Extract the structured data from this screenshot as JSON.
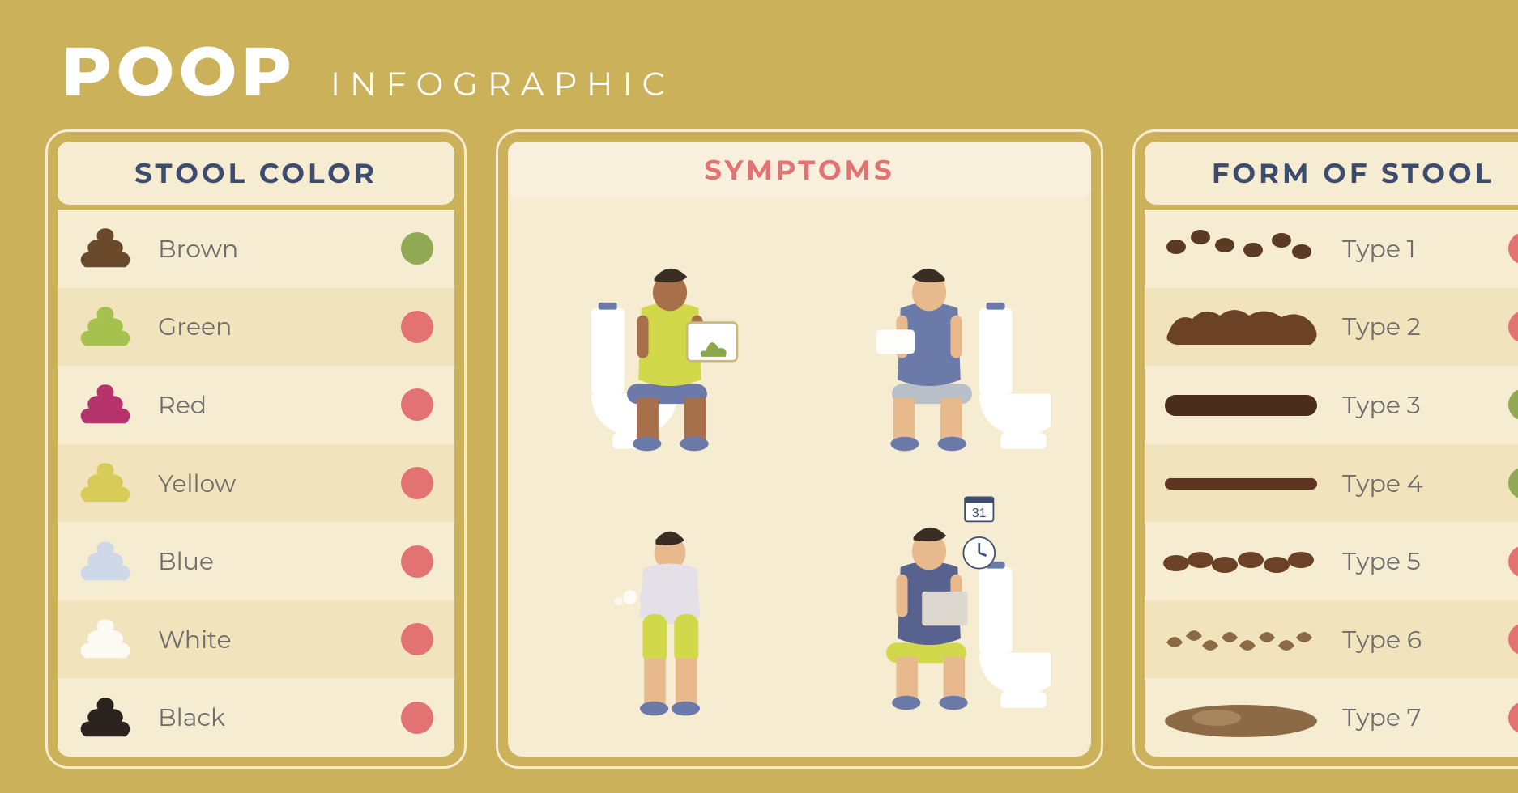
{
  "title": {
    "main": "POOP",
    "sub": "INFOGRAPHIC"
  },
  "colors": {
    "background": "#cbb159",
    "panelBorder": "#f5ecd2",
    "rowA": "#f5ecd2",
    "rowB": "#f1e3bb",
    "headerDark": "#3c4c6e",
    "headerAccent": "#e37373",
    "textGrey": "#6d6d6d",
    "statusGood": "#90a955",
    "statusBad": "#e37373"
  },
  "panels": {
    "stoolColor": {
      "title": "STOOL COLOR",
      "items": [
        {
          "label": "Brown",
          "iconColor": "#6b4a2b",
          "status": "good"
        },
        {
          "label": "Green",
          "iconColor": "#a4c24d",
          "status": "bad"
        },
        {
          "label": "Red",
          "iconColor": "#b5336a",
          "status": "bad"
        },
        {
          "label": "Yellow",
          "iconColor": "#d7cc57",
          "status": "bad"
        },
        {
          "label": "Blue",
          "iconColor": "#cdd9e8",
          "status": "bad"
        },
        {
          "label": "White",
          "iconColor": "#fcfaf3",
          "status": "bad"
        },
        {
          "label": "Black",
          "iconColor": "#2a2320",
          "status": "bad"
        }
      ]
    },
    "symptoms": {
      "title": "SYMPTOMS",
      "scenes": [
        {
          "id": "comparing-chart",
          "shirt": "#d1d94a",
          "pants": "#6b7aa8",
          "skin": "#a86f4b"
        },
        {
          "id": "stomach-pain",
          "shirt": "#6b7aa8",
          "pants": "#b9bfc9",
          "skin": "#e9b98e"
        },
        {
          "id": "bloating",
          "shirt": "#e4e0e8",
          "pants": "#d1d94a",
          "skin": "#e9b98e"
        },
        {
          "id": "constipation",
          "shirt": "#57628e",
          "pants": "#d1d94a",
          "skin": "#e9b98e",
          "calendar": "31"
        }
      ]
    },
    "formOfStool": {
      "title": "FORM OF STOOL",
      "items": [
        {
          "label": "Type 1",
          "shape": "nuggets",
          "color": "#5b3a23",
          "status": "bad"
        },
        {
          "label": "Type 2",
          "shape": "lumpy",
          "color": "#6b4226",
          "status": "bad"
        },
        {
          "label": "Type 3",
          "shape": "sausage",
          "color": "#4b2d1d",
          "status": "good"
        },
        {
          "label": "Type 4",
          "shape": "smooth",
          "color": "#5d3322",
          "status": "good"
        },
        {
          "label": "Type 5",
          "shape": "blobs",
          "color": "#6b4226",
          "status": "bad"
        },
        {
          "label": "Type 6",
          "shape": "mushy",
          "color": "#8d6a46",
          "status": "bad"
        },
        {
          "label": "Type 7",
          "shape": "liquid",
          "color": "#8d6a46",
          "status": "bad"
        }
      ]
    }
  },
  "typography": {
    "titleMainSize": 84,
    "titleSubSize": 40,
    "panelHeaderSize": 34,
    "rowLabelSize": 30
  }
}
